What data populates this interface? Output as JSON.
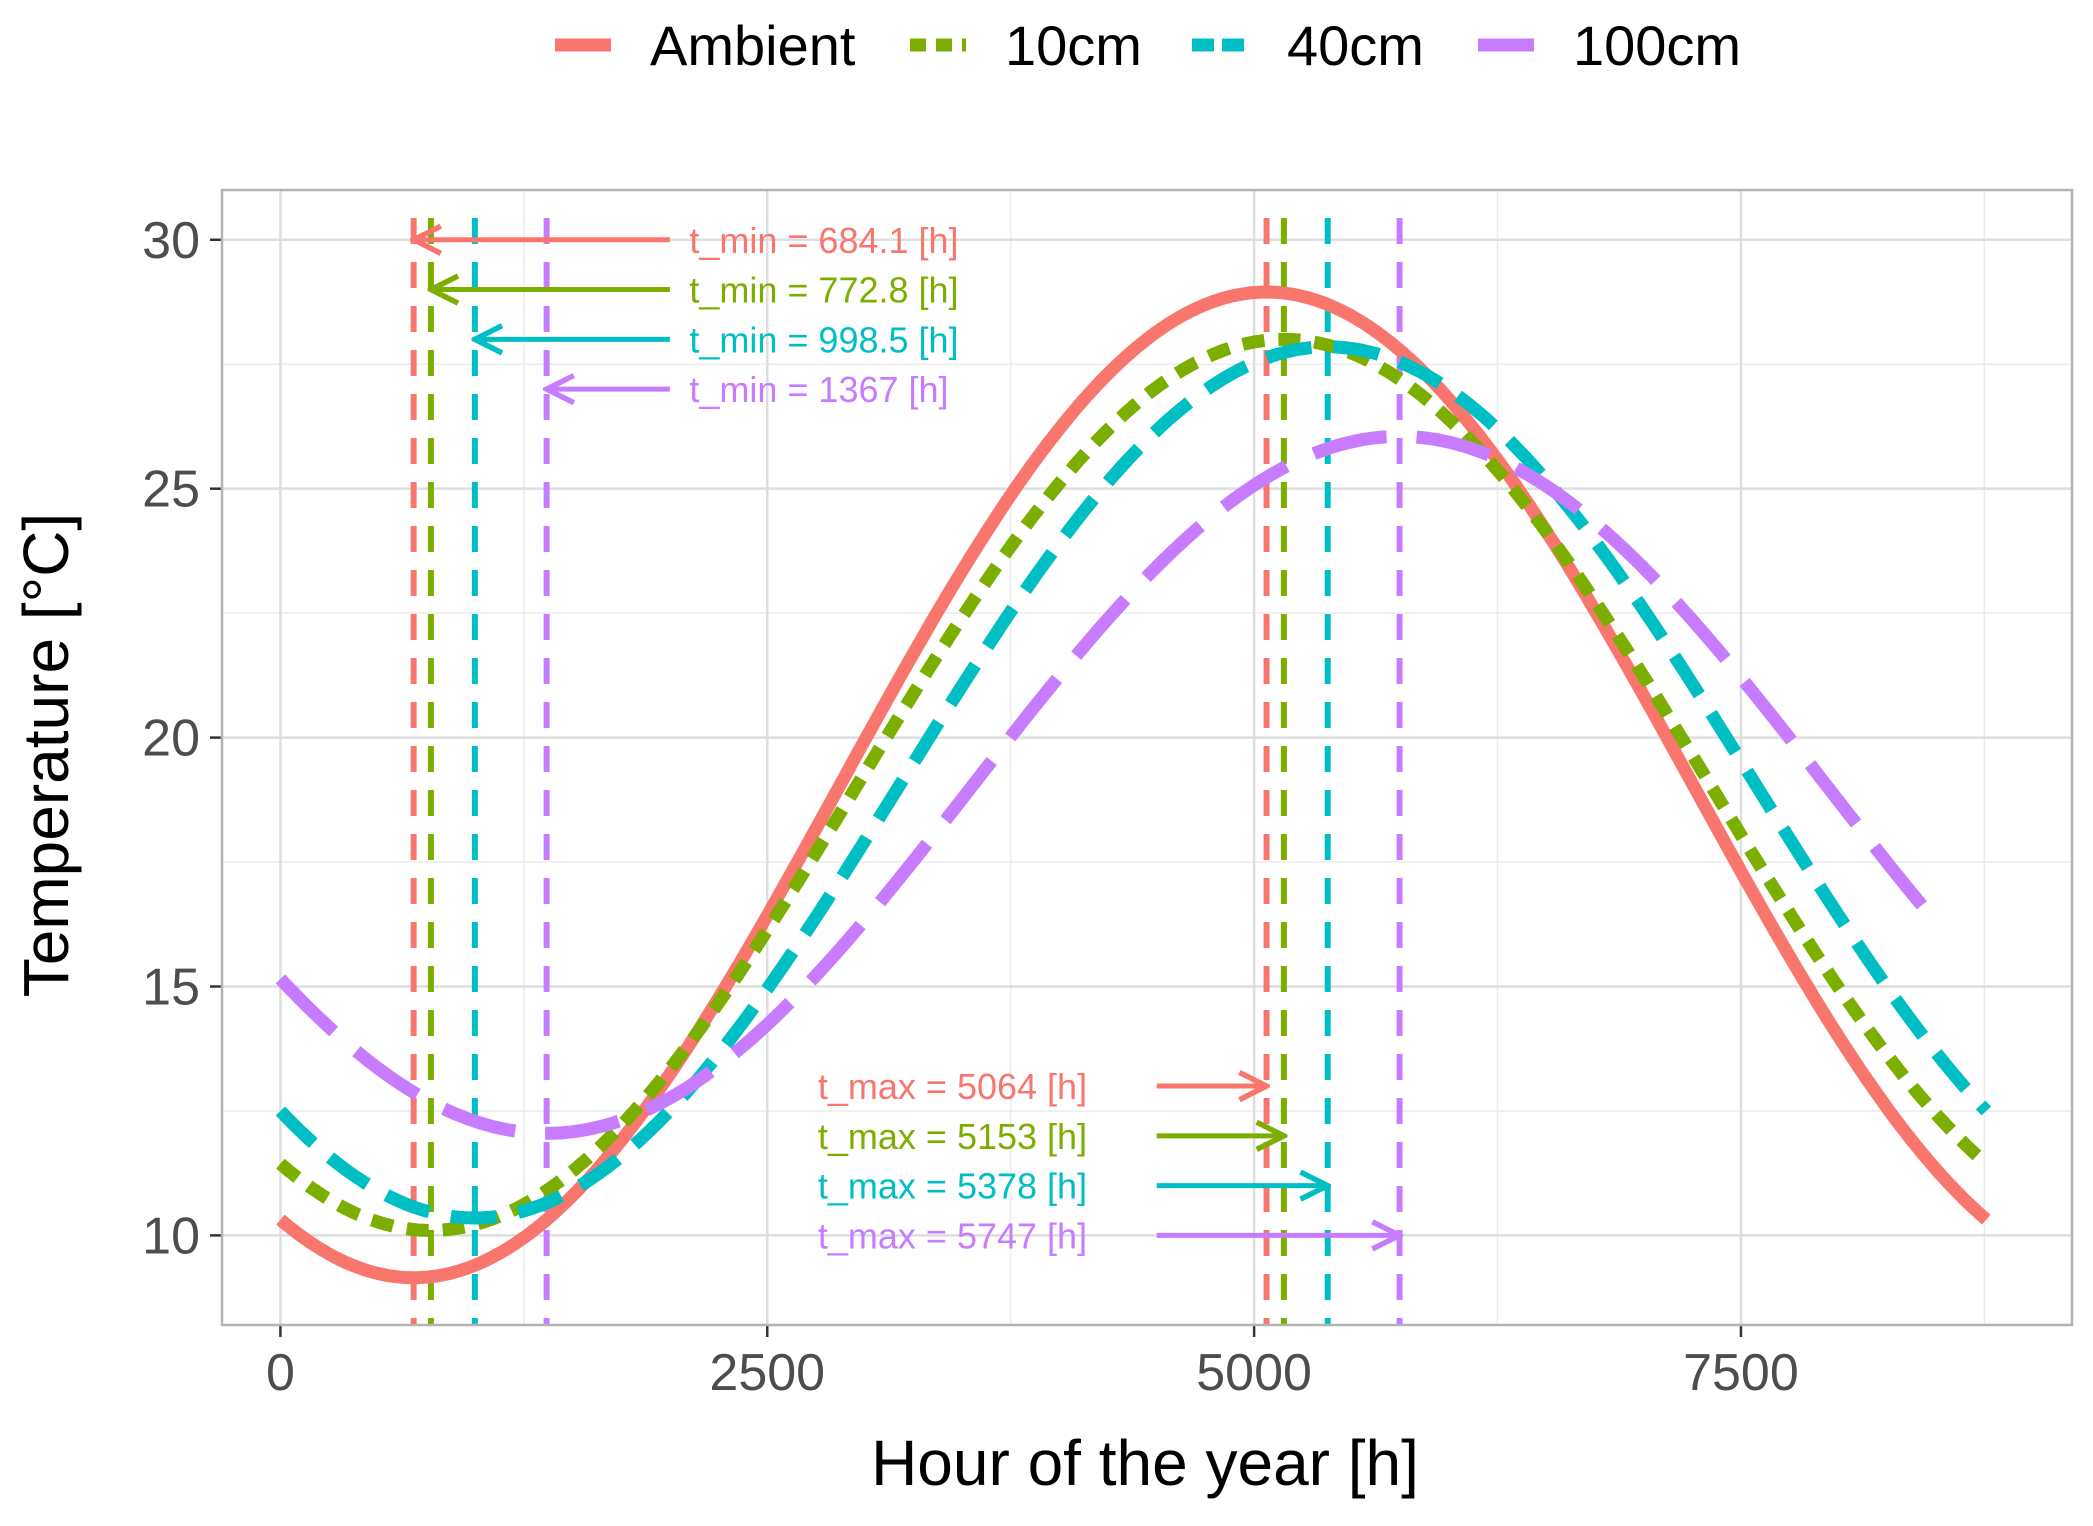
{
  "chart_data": {
    "type": "line",
    "title": "",
    "xlabel": "Hour of the year [h]",
    "ylabel": "Temperature [°C]",
    "xlim": [
      -300,
      9200
    ],
    "ylim": [
      8.2,
      31.0
    ],
    "x_ticks": [
      0,
      2500,
      5000,
      7500
    ],
    "x_tick_labels": [
      "0",
      "2500",
      "5000",
      "7500"
    ],
    "y_ticks": [
      10,
      15,
      20,
      25,
      30
    ],
    "y_tick_labels": [
      "10",
      "15",
      "20",
      "25",
      "30"
    ],
    "grid": true,
    "legend_position": "top",
    "series": [
      {
        "name": "Ambient",
        "color": "#F8766D",
        "dash": "solid",
        "mean": 19.05,
        "amplitude": 9.9,
        "t_min": 684.1,
        "t_max": 5064,
        "x_range": [
          0,
          8760
        ],
        "t_min_label": "t_min =  684.1 [h]",
        "t_max_label": "t_max =  5064 [h]"
      },
      {
        "name": "10cm",
        "color": "#7CAE00",
        "dash": "dotted",
        "mean": 19.05,
        "amplitude": 8.95,
        "t_min": 772.8,
        "t_max": 5153,
        "x_range": [
          0,
          8760
        ],
        "t_min_label": "t_min =  772.8 [h]",
        "t_max_label": "t_max =  5153 [h]"
      },
      {
        "name": "40cm",
        "color": "#00BFC4",
        "dash": "dashed",
        "mean": 19.1,
        "amplitude": 8.75,
        "t_min": 998.5,
        "t_max": 5378,
        "x_range": [
          0,
          8760
        ],
        "t_min_label": "t_min =  998.5 [h]",
        "t_max_label": "t_max =  5378 [h]"
      },
      {
        "name": "100cm",
        "color": "#C77CFF",
        "dash": "longdash",
        "mean": 19.05,
        "amplitude": 7.0,
        "t_min": 1367,
        "t_max": 5747,
        "x_range": [
          0,
          8500
        ],
        "t_min_label": "t_min =  1367 [h]",
        "t_max_label": "t_max =  5747 [h]"
      }
    ],
    "annotations": {
      "t_min_arrow_rows": [
        30,
        29,
        28,
        27
      ],
      "t_min_arrow_tail_x": 2000,
      "t_min_label_x": 2100,
      "t_max_arrow_rows": [
        13,
        12,
        11,
        10
      ],
      "t_max_arrow_tail_x": 4500,
      "t_max_label_x": 2760
    }
  }
}
